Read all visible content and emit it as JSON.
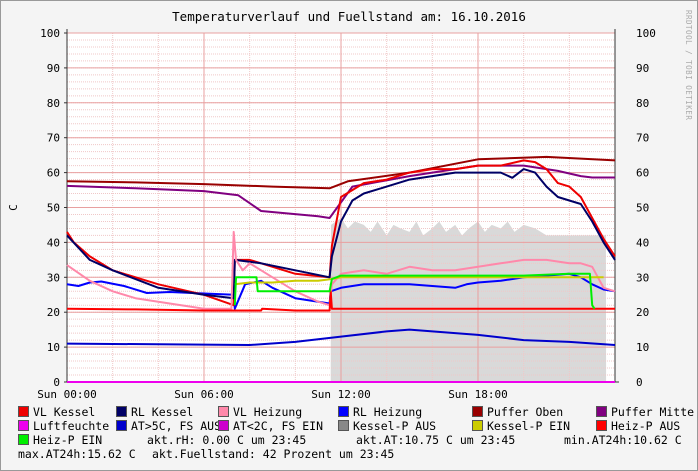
{
  "title": "Temperaturverlauf und Fuellstand am: 16.10.2016",
  "watermark": "RRDTOOL / TOBI OETIKER",
  "chart_data": {
    "type": "line",
    "title": "Temperaturverlauf und Fuellstand am: 16.10.2016",
    "ylabel": "C",
    "ylim": [
      0,
      100
    ],
    "y_ticks": [
      0,
      10,
      20,
      30,
      40,
      50,
      60,
      70,
      80,
      90,
      100
    ],
    "xlim": [
      0,
      24
    ],
    "x_ticks": [
      {
        "x": 0,
        "label": "Sun 00:00"
      },
      {
        "x": 6,
        "label": "Sun 06:00"
      },
      {
        "x": 12,
        "label": "Sun 12:00"
      },
      {
        "x": 18,
        "label": "Sun 18:00"
      }
    ],
    "grid": true,
    "legend_placement": "bottom",
    "area": {
      "name": "Kessel-P AUS",
      "color": "#d9d9d9",
      "x": [
        11.55,
        11.56,
        12,
        12.3,
        12.6,
        13,
        13.3,
        13.6,
        14,
        14.3,
        14.6,
        15,
        15.3,
        15.6,
        16,
        16.3,
        16.6,
        17,
        17.3,
        17.6,
        18,
        18.3,
        18.6,
        19,
        19.3,
        19.6,
        20,
        20.5,
        21,
        21.5,
        22,
        22.5,
        23,
        23.6,
        23.61
      ],
      "y": [
        0,
        45,
        47,
        44,
        46,
        45,
        43,
        46,
        42,
        45,
        44,
        43,
        46,
        42,
        44,
        46,
        43,
        45,
        42,
        44,
        46,
        43,
        45,
        44,
        46,
        43,
        45,
        44,
        42,
        42,
        42,
        42,
        42,
        42,
        0
      ]
    },
    "series": [
      {
        "name": "Puffer Oben",
        "color": "#990000",
        "x": [
          0,
          3,
          6,
          9,
          11.5,
          12.3,
          15,
          18,
          21,
          24
        ],
        "y": [
          57.5,
          57.2,
          56.7,
          56,
          55.5,
          57.5,
          60,
          63.8,
          64.5,
          63.5
        ]
      },
      {
        "name": "Puffer Mitte",
        "color": "#800080",
        "x": [
          0,
          3,
          6,
          7.5,
          8.5,
          11,
          11.5,
          12.5,
          15,
          18,
          20,
          21.5,
          22.5,
          23,
          24
        ],
        "y": [
          56.2,
          55.5,
          54.7,
          53.5,
          49,
          47.5,
          47,
          56,
          59,
          62,
          62,
          60.5,
          59,
          58.6,
          58.6
        ]
      },
      {
        "name": "Luftfeuchte",
        "color": "#ee00ee",
        "x": [
          0,
          24
        ],
        "y": [
          0,
          0
        ]
      },
      {
        "name": "AT>5C, FS AUS",
        "color": "#0000cc",
        "x": [
          0,
          4,
          8,
          10,
          12,
          14,
          15,
          16,
          18,
          20,
          22,
          24
        ],
        "y": [
          11,
          10.8,
          10.6,
          11.5,
          13,
          14.5,
          15,
          14.5,
          13.5,
          12,
          11.5,
          10.6
        ]
      },
      {
        "name": "RL Heizung",
        "color": "#0000ff",
        "x": [
          0,
          0.5,
          1.0,
          1.5,
          2.5,
          3.5,
          4.5,
          5.5,
          7.3,
          7.35,
          7.8,
          8.5,
          9,
          10,
          11,
          11.5,
          11.55,
          12,
          13,
          14,
          15,
          16,
          17,
          17.5,
          18,
          19,
          20,
          21,
          22,
          22.5,
          23,
          23.5,
          24
        ],
        "y": [
          28,
          27.5,
          28.5,
          28.8,
          27.5,
          25.5,
          25.8,
          25.5,
          25,
          21,
          28,
          29,
          27,
          24,
          23,
          22.5,
          26,
          27,
          28,
          28,
          28,
          27.5,
          27,
          28,
          28.5,
          29,
          30,
          30.5,
          31,
          30,
          28,
          26.5,
          26
        ]
      },
      {
        "name": "AT<2C, FS EIN",
        "color": "#cc00cc",
        "x": [],
        "y": []
      },
      {
        "name": "VL Kessel",
        "color": "#ee0000",
        "x": [
          0,
          0.3,
          1,
          2,
          4,
          6,
          7.3,
          7.35,
          8,
          8.5,
          9,
          10,
          11.5,
          11.6,
          12,
          13,
          14,
          15,
          16,
          17,
          18,
          19,
          20,
          20.5,
          21,
          21.5,
          22,
          22.5,
          23,
          23.5,
          24
        ],
        "y": [
          43,
          40,
          36,
          32,
          28,
          25,
          22,
          35,
          35,
          34,
          33,
          31,
          30,
          39,
          53,
          57,
          58,
          60,
          61,
          61,
          62,
          62,
          63.5,
          63,
          61,
          57,
          56,
          53,
          47,
          41,
          36
        ]
      },
      {
        "name": "RL Kessel",
        "color": "#000066",
        "x": [
          0,
          1,
          2,
          4,
          6,
          7.3,
          7.35,
          8.5,
          10,
          11.5,
          11.6,
          12,
          12.5,
          13,
          14,
          15,
          16,
          17,
          18,
          19,
          19.5,
          20,
          20.5,
          21,
          21.5,
          22,
          22.5,
          23,
          23.5,
          24
        ],
        "y": [
          42,
          35,
          32,
          27,
          25,
          24,
          35,
          34,
          32,
          30,
          36,
          46,
          52,
          54,
          56,
          58,
          59,
          60,
          60,
          60,
          58.5,
          61,
          60,
          56,
          53,
          52,
          51,
          46,
          40,
          35
        ]
      },
      {
        "name": "VL Heizung",
        "color": "#ff88aa",
        "x": [
          0,
          1,
          2,
          3,
          4,
          5,
          6,
          7.2,
          7.3,
          7.4,
          7.7,
          8,
          8.5,
          9,
          10,
          11,
          11.5,
          11.6,
          12,
          13,
          14,
          15,
          16,
          17,
          18,
          19,
          20,
          21,
          22,
          22.5,
          23,
          23.5,
          24
        ],
        "y": [
          33.5,
          29,
          26,
          24,
          23,
          22,
          21,
          21,
          43,
          35,
          32,
          34,
          32,
          30,
          26,
          23,
          22,
          28,
          31,
          32,
          31,
          33,
          32,
          32,
          33,
          34,
          35,
          35,
          34,
          34,
          33,
          27,
          26
        ]
      },
      {
        "name": "Kessel-P EIN",
        "color": "#cccc00",
        "x": [
          7.35,
          8,
          9,
          10,
          11,
          11.6,
          12,
          13,
          14,
          16,
          18,
          20,
          22,
          23.5
        ],
        "y": [
          28,
          28.5,
          28.5,
          29,
          29,
          29.5,
          30,
          30,
          30,
          30,
          30,
          30,
          30,
          30
        ]
      },
      {
        "name": "Heiz-P AUS",
        "color": "#ff0000",
        "x": [
          0,
          3,
          6,
          7.3,
          8.5,
          8.55,
          10,
          11.5,
          11.55,
          11.6,
          12,
          13,
          14,
          16,
          18,
          20,
          22,
          23,
          23.1,
          24
        ],
        "y": [
          21,
          20.8,
          20.5,
          20.5,
          20.5,
          21,
          20.5,
          20.5,
          26,
          21,
          21,
          21,
          21,
          21,
          21,
          21,
          21,
          21,
          21,
          21
        ]
      },
      {
        "name": "Heiz-P EIN",
        "color": "#00ee00",
        "x": [
          7.35,
          7.4,
          8.3,
          8.35,
          11.5,
          11.6,
          12,
          14,
          16,
          18,
          20,
          22,
          22.9,
          23,
          23.1
        ],
        "y": [
          22,
          30,
          30,
          26,
          26,
          29.5,
          30.5,
          30.5,
          30.5,
          30.5,
          30.5,
          31,
          31,
          22,
          21
        ]
      }
    ],
    "annotations": [
      "akt.rH: 0.00 C um 23:45",
      "akt.AT:10.75 C um 23:45",
      "min.AT24h:10.62 C",
      "max.AT24h:15.62 C",
      "akt.Fuellstand:   42 Prozent um 23:45"
    ]
  },
  "legend": [
    {
      "label": "VL Kessel",
      "color": "#ee0000"
    },
    {
      "label": "RL Kessel",
      "color": "#000066"
    },
    {
      "label": "VL Heizung",
      "color": "#ff88aa"
    },
    {
      "label": "RL Heizung",
      "color": "#0000ff"
    },
    {
      "label": "Puffer Oben",
      "color": "#990000"
    },
    {
      "label": "Puffer Mitte",
      "color": "#800080"
    },
    {
      "label": "Luftfeuchte",
      "color": "#ee00ee"
    },
    {
      "label": "AT>5C, FS AUS",
      "color": "#0000cc"
    },
    {
      "label": "AT<2C, FS EIN",
      "color": "#cc00cc"
    },
    {
      "label": "Kessel-P AUS",
      "color": "#888888"
    },
    {
      "label": "Kessel-P EIN",
      "color": "#cccc00"
    },
    {
      "label": "Heiz-P AUS",
      "color": "#ff0000"
    },
    {
      "label": "Heiz-P EIN",
      "color": "#00ee00"
    }
  ],
  "info": {
    "rh": "akt.rH: 0.00 C um 23:45",
    "at": "akt.AT:10.75 C um 23:45",
    "min": "min.AT24h:10.62 C",
    "max": "max.AT24h:15.62 C",
    "fuell": "akt.Fuellstand:   42 Prozent um 23:45"
  }
}
